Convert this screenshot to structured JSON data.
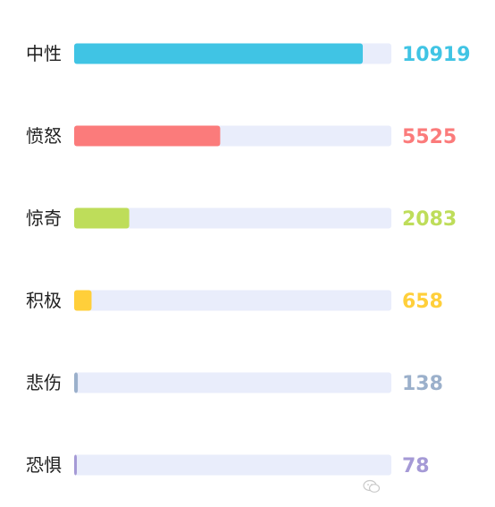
{
  "chart_data": {
    "type": "bar",
    "orientation": "horizontal",
    "categories": [
      "中性",
      "愤怒",
      "惊奇",
      "积极",
      "悲伤",
      "恐惧"
    ],
    "values": [
      10919,
      5525,
      2083,
      658,
      138,
      78
    ],
    "value_labels": [
      "10919",
      "5525",
      "2083",
      "658",
      "138",
      "78"
    ],
    "xlim": [
      0,
      12000
    ],
    "colors": [
      "#40c4e4",
      "#fb7b7b",
      "#bedd5a",
      "#ffcf3a",
      "#9bb0cb",
      "#a59ad6"
    ],
    "track_color": "#e9edfb",
    "grid": false,
    "legend": "none"
  },
  "watermark": {
    "icon": "wechat-icon"
  }
}
